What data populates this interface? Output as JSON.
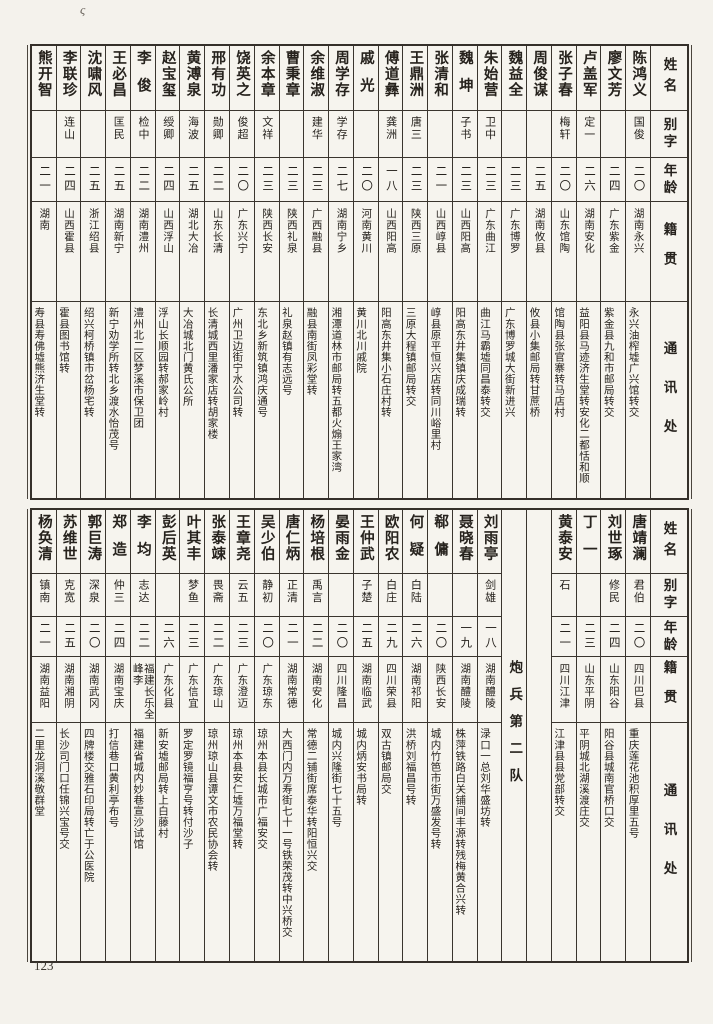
{
  "page": {
    "number": "123",
    "mark": "ς"
  },
  "headers": [
    "姓名",
    "别字",
    "年龄",
    "籍贯",
    "通讯处"
  ],
  "table_top": {
    "columns": [
      {
        "type": "header"
      },
      {
        "name": "陈鸿义",
        "zi": "国俊",
        "age": "二〇",
        "native": "湖南永兴",
        "addr": "永兴油榨墟广兴馆转交"
      },
      {
        "name": "廖文芳",
        "zi": "",
        "age": "二四",
        "native": "广东紫金",
        "addr": "紫金县九和市邮局转交"
      },
      {
        "name": "卢盖军",
        "zi": "定一",
        "age": "二六",
        "native": "湖南安化",
        "addr": "益阳县马迹济生堂转安化二都恬和顺"
      },
      {
        "name": "张子春",
        "zi": "梅轩",
        "age": "二〇",
        "native": "山东馆陶",
        "addr": "馆陶县张官寨转马店村"
      },
      {
        "name": "周俊谋",
        "zi": "",
        "age": "二五",
        "native": "湖南攸县",
        "addr": "攸县小集邮局转甘蔗桥"
      },
      {
        "name": "魏益全",
        "zi": "",
        "age": "二三",
        "native": "广东博罗",
        "addr": "广东博罗城大街新进兴"
      },
      {
        "name": "朱始营",
        "zi": "卫中",
        "age": "二三",
        "native": "广东曲江",
        "addr": "曲江马霸墟同昌泰转交"
      },
      {
        "name": "魏坤",
        "zi": "子书",
        "age": "二三",
        "native": "山西阳高",
        "addr": "阳高东井集镇庆成瑞转"
      },
      {
        "name": "张清和",
        "zi": "",
        "age": "二一",
        "native": "山西崞县",
        "addr": "崞县原平恒兴店转同川峪里村"
      },
      {
        "name": "王鼎洲",
        "zi": "唐三",
        "age": "二三",
        "native": "陕西三原",
        "addr": "三原大程镇邮局转交"
      },
      {
        "name": "傅道彝",
        "zi": "龚洲",
        "age": "一八",
        "native": "山西阳高",
        "addr": "阳高东井集小石庄村转"
      },
      {
        "name": "戚光",
        "zi": "",
        "age": "二〇",
        "native": "河南黄川",
        "addr": "黄川北川戚院"
      },
      {
        "name": "周学存",
        "zi": "学存",
        "age": "二七",
        "native": "湖南宁乡",
        "addr": "湘潭道林市邮局转五都火煽王家湾"
      },
      {
        "name": "余维淑",
        "zi": "建华",
        "age": "二三",
        "native": "广西融县",
        "addr": "融县南街凤彩堂转"
      },
      {
        "name": "曹秉章",
        "zi": "",
        "age": "二三",
        "native": "陕西礼泉",
        "addr": "礼泉赵镇有志远号"
      },
      {
        "name": "余本章",
        "zi": "文祥",
        "age": "二三",
        "native": "陕西长安",
        "addr": "东北乡新筑镇鸿庆通号"
      },
      {
        "name": "饶英之",
        "zi": "俊超",
        "age": "二〇",
        "native": "广东兴宁",
        "addr": "广州卫边街宁水公司转"
      },
      {
        "name": "邢有功",
        "zi": "勋卿",
        "age": "二二",
        "native": "山东长清",
        "addr": "长清城西里潘家店转胡家楼"
      },
      {
        "name": "黄溥泉",
        "zi": "海波",
        "age": "二五",
        "native": "湖北大冶",
        "addr": "大冶城北门黄氏公所"
      },
      {
        "name": "赵宝玺",
        "zi": "绶卿",
        "age": "二四",
        "native": "山西浮山",
        "addr": "浮山长顺园转郝家岭村"
      },
      {
        "name": "李俊",
        "zi": "检中",
        "age": "二二",
        "native": "湖南澧州",
        "addr": "澧州北二区梦溪市保卫团"
      },
      {
        "name": "王必昌",
        "zi": "匡民",
        "age": "二五",
        "native": "湖南新宁",
        "addr": "新宁劝学所转北乡渡水怡茂号"
      },
      {
        "name": "沈啸风",
        "zi": "",
        "age": "二五",
        "native": "浙江绍县",
        "addr": "绍兴柯桥镇市岔杨宅转"
      },
      {
        "name": "李联珍",
        "zi": "连山",
        "age": "二四",
        "native": "山西霍县",
        "addr": "霍县图书馆转"
      },
      {
        "name": "熊开智",
        "zi": "",
        "age": "二一",
        "native": "湖南",
        "addr": "寿县寿佛墟熊济生堂转"
      }
    ]
  },
  "table_bottom": {
    "section_label": "炮兵第二队",
    "columns": [
      {
        "type": "header"
      },
      {
        "name": "唐靖澜",
        "zi": "君伯",
        "age": "二〇",
        "native": "四川巴县",
        "addr": "重庆莲花池积厚里五号"
      },
      {
        "name": "刘世琢",
        "zi": "修民",
        "age": "二四",
        "native": "山东阳谷",
        "addr": "阳谷县城南官桥口交"
      },
      {
        "name": "丁一",
        "zi": "",
        "age": "二三",
        "native": "山东平阴",
        "addr": "平阴城北湖溪渡庄交"
      },
      {
        "name": "黄泰安",
        "zi": "石",
        "age": "二一",
        "native": "四川江津",
        "addr": "江津县县党部转交"
      },
      {
        "type": "empty"
      },
      {
        "type": "section"
      },
      {
        "name": "刘雨亭",
        "zi": "剑雄",
        "age": "一八",
        "native": "湖南醴陵",
        "addr": "渌口一总刘华盛坊转"
      },
      {
        "name": "聂晓春",
        "zi": "",
        "age": "一九",
        "native": "湖南醴陵",
        "addr": "株萍铁路白关铺间丰源转残梅黄合兴转"
      },
      {
        "name": "郗傭",
        "zi": "",
        "age": "二〇",
        "native": "陕西长安",
        "addr": "城内竹笆市街万盛发号转"
      },
      {
        "name": "何疑",
        "zi": "白陆",
        "age": "二六",
        "native": "湖南祁阳",
        "addr": "洪桥刘福昌号转"
      },
      {
        "name": "欧阳农",
        "zi": "白庄",
        "age": "二九",
        "native": "四川荣县",
        "addr": "双古镇邮局交"
      },
      {
        "name": "王仲武",
        "zi": "子楚",
        "age": "二五",
        "native": "湖南临武",
        "addr": "城内炳安书局转"
      },
      {
        "name": "晏雨金",
        "zi": "",
        "age": "二〇",
        "native": "四川隆昌",
        "addr": "城内兴隆街七十五号"
      },
      {
        "name": "杨培根",
        "zi": "禹言",
        "age": "二二",
        "native": "湖南安化",
        "addr": "常德二铺街席泰华转阳恒兴交"
      },
      {
        "name": "唐仁炳",
        "zi": "正清",
        "age": "二一",
        "native": "湖南常德",
        "addr": "大西门内万寿街七十一号铁荣茂转中兴桥交"
      },
      {
        "name": "吴少伯",
        "zi": "静初",
        "age": "二〇",
        "native": "广东琼东",
        "addr": "琼州本县长城市广福安交"
      },
      {
        "name": "王章尧",
        "zi": "云五",
        "age": "二三",
        "native": "广东澄迈",
        "addr": "琼州本县安仁墟万福堂转"
      },
      {
        "name": "张泰竦",
        "zi": "畏斋",
        "age": "二二",
        "native": "广东琼山",
        "addr": "琼州琼山县谭文市农民协会转"
      },
      {
        "name": "叶其丰",
        "zi": "梦鱼",
        "age": "二三",
        "native": "广东信宜",
        "addr": "罗定罗镜福亨号转付沙子"
      },
      {
        "name": "彭后英",
        "zi": "",
        "age": "二六",
        "native": "广东化县",
        "addr": "新安墟邮局转上白藤村"
      },
      {
        "name": "李均",
        "zi": "志达",
        "age": "二二",
        "native": "福建长乐全峰李",
        "addr": "福建省城内妙巷宣沙试馆"
      },
      {
        "name": "郑造",
        "zi": "仲三",
        "age": "二四",
        "native": "湖南宝庆",
        "addr": "打信巷口黄利亭布号"
      },
      {
        "name": "郭巨涛",
        "zi": "深泉",
        "age": "二〇",
        "native": "湖南武冈",
        "addr": "四牌楼交雅石印局转亡于公医院"
      },
      {
        "name": "苏维世",
        "zi": "克宽",
        "age": "二五",
        "native": "湖南湘阴",
        "addr": "长沙司门口任锦兴宝号交"
      },
      {
        "name": "杨奂清",
        "zi": "镇南",
        "age": "二一",
        "native": "湖南益阳",
        "addr": "二里龙洞溪敬群堂"
      }
    ]
  }
}
